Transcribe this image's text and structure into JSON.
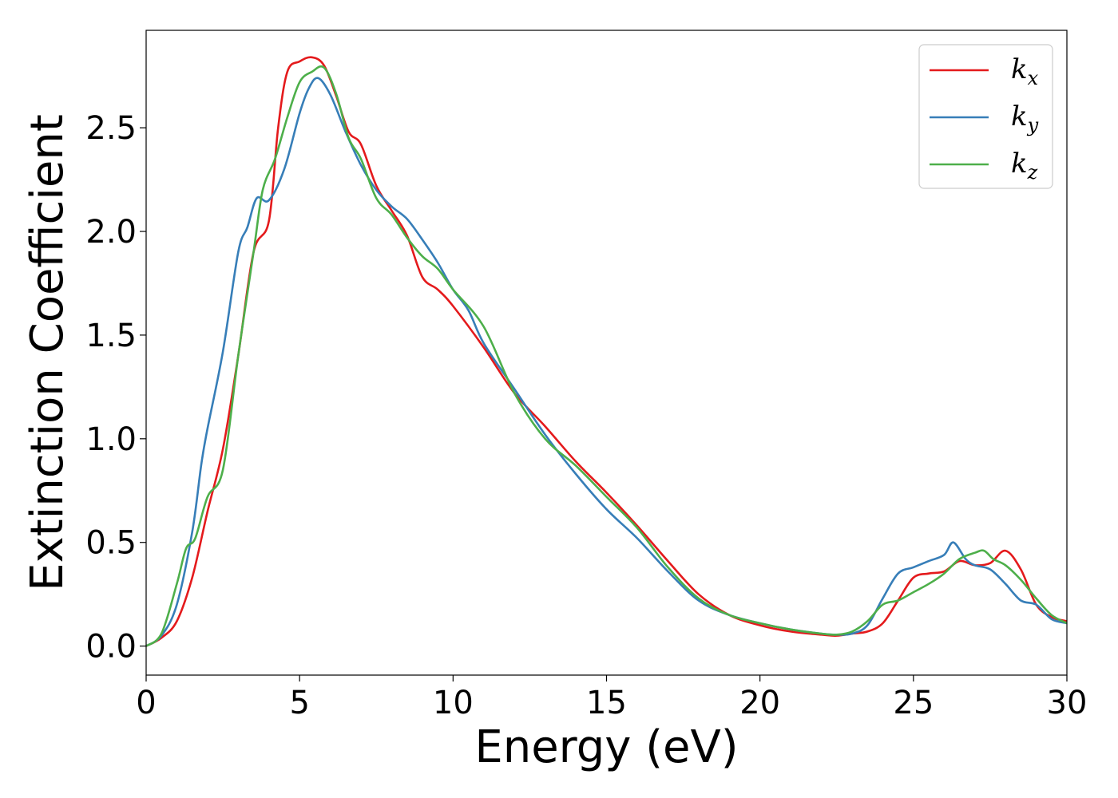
{
  "chart_data": {
    "type": "line",
    "xlabel": "Energy (eV)",
    "ylabel": "Extinction Coefficient",
    "xlim": [
      0,
      30
    ],
    "ylim": [
      -0.14,
      2.97
    ],
    "xticks": [
      0,
      5,
      10,
      15,
      20,
      25,
      30
    ],
    "xtick_labels": [
      "0",
      "5",
      "10",
      "15",
      "20",
      "25",
      "30"
    ],
    "yticks": [
      0.0,
      0.5,
      1.0,
      1.5,
      2.0,
      2.5
    ],
    "ytick_labels": [
      "0.0",
      "0.5",
      "1.0",
      "1.5",
      "2.0",
      "2.5"
    ],
    "grid": false,
    "legend_position": "top-right",
    "series": [
      {
        "name": "k_x",
        "label_base": "k",
        "label_sub": "x",
        "color": "#e41a1c",
        "x": [
          0,
          0.5,
          1.0,
          1.5,
          2.0,
          2.5,
          3.0,
          3.5,
          4.0,
          4.3,
          4.6,
          5.0,
          5.4,
          5.8,
          6.2,
          6.6,
          7.0,
          7.5,
          8.0,
          8.5,
          9.0,
          9.5,
          10,
          11,
          12,
          13,
          14,
          15,
          16,
          17,
          18,
          19,
          20,
          21,
          22,
          22.5,
          23,
          23.5,
          24,
          24.5,
          25,
          25.5,
          26,
          26.5,
          27,
          27.5,
          28,
          28.5,
          29,
          29.5,
          30
        ],
        "y": [
          0.0,
          0.04,
          0.12,
          0.33,
          0.65,
          0.95,
          1.4,
          1.9,
          2.05,
          2.5,
          2.77,
          2.82,
          2.84,
          2.8,
          2.65,
          2.48,
          2.42,
          2.22,
          2.1,
          1.98,
          1.78,
          1.72,
          1.64,
          1.44,
          1.22,
          1.06,
          0.89,
          0.74,
          0.58,
          0.41,
          0.25,
          0.15,
          0.1,
          0.07,
          0.055,
          0.05,
          0.06,
          0.07,
          0.11,
          0.22,
          0.33,
          0.35,
          0.36,
          0.41,
          0.39,
          0.4,
          0.46,
          0.37,
          0.2,
          0.14,
          0.12
        ]
      },
      {
        "name": "k_y",
        "label_base": "k",
        "label_sub": "y",
        "color": "#377eb8",
        "x": [
          0,
          0.5,
          1.0,
          1.5,
          1.8,
          2.0,
          2.5,
          3.0,
          3.3,
          3.6,
          4.0,
          4.5,
          5.0,
          5.3,
          5.6,
          6.0,
          6.5,
          7.0,
          7.5,
          8.0,
          8.5,
          9.0,
          9.5,
          10,
          10.5,
          11,
          12,
          13,
          14,
          15,
          16,
          17,
          18,
          19,
          20,
          21,
          22,
          22.5,
          23,
          23.5,
          24,
          24.5,
          25,
          25.5,
          26,
          26.3,
          26.7,
          27,
          27.5,
          28,
          28.5,
          29,
          29.5,
          30
        ],
        "y": [
          0.0,
          0.05,
          0.2,
          0.55,
          0.88,
          1.05,
          1.42,
          1.9,
          2.02,
          2.16,
          2.15,
          2.3,
          2.57,
          2.69,
          2.74,
          2.66,
          2.48,
          2.32,
          2.2,
          2.12,
          2.06,
          1.96,
          1.85,
          1.72,
          1.62,
          1.46,
          1.24,
          1.02,
          0.83,
          0.66,
          0.52,
          0.36,
          0.22,
          0.15,
          0.11,
          0.08,
          0.06,
          0.055,
          0.06,
          0.1,
          0.23,
          0.35,
          0.38,
          0.41,
          0.44,
          0.5,
          0.42,
          0.39,
          0.37,
          0.3,
          0.22,
          0.2,
          0.13,
          0.11
        ]
      },
      {
        "name": "k_z",
        "label_base": "k",
        "label_sub": "z",
        "color": "#4daf4a",
        "x": [
          0,
          0.5,
          1.0,
          1.3,
          1.6,
          2.0,
          2.5,
          3.0,
          3.5,
          3.8,
          4.2,
          4.6,
          5.0,
          5.4,
          5.8,
          6.2,
          6.6,
          7.0,
          7.5,
          8.0,
          8.5,
          9.0,
          9.5,
          10,
          11,
          12,
          13,
          14,
          15,
          16,
          17,
          18,
          19,
          20,
          21,
          22,
          22.5,
          23,
          23.5,
          24,
          24.5,
          25,
          25.5,
          26,
          26.5,
          27,
          27.3,
          27.6,
          28,
          28.5,
          29,
          29.5,
          30
        ],
        "y": [
          0.0,
          0.06,
          0.3,
          0.47,
          0.52,
          0.72,
          0.85,
          1.4,
          1.9,
          2.2,
          2.35,
          2.55,
          2.72,
          2.77,
          2.79,
          2.66,
          2.45,
          2.35,
          2.16,
          2.08,
          1.97,
          1.88,
          1.82,
          1.72,
          1.54,
          1.22,
          1.0,
          0.87,
          0.72,
          0.57,
          0.38,
          0.23,
          0.15,
          0.11,
          0.08,
          0.06,
          0.055,
          0.07,
          0.12,
          0.2,
          0.22,
          0.26,
          0.3,
          0.35,
          0.42,
          0.45,
          0.46,
          0.42,
          0.39,
          0.32,
          0.23,
          0.15,
          0.11
        ]
      }
    ]
  }
}
